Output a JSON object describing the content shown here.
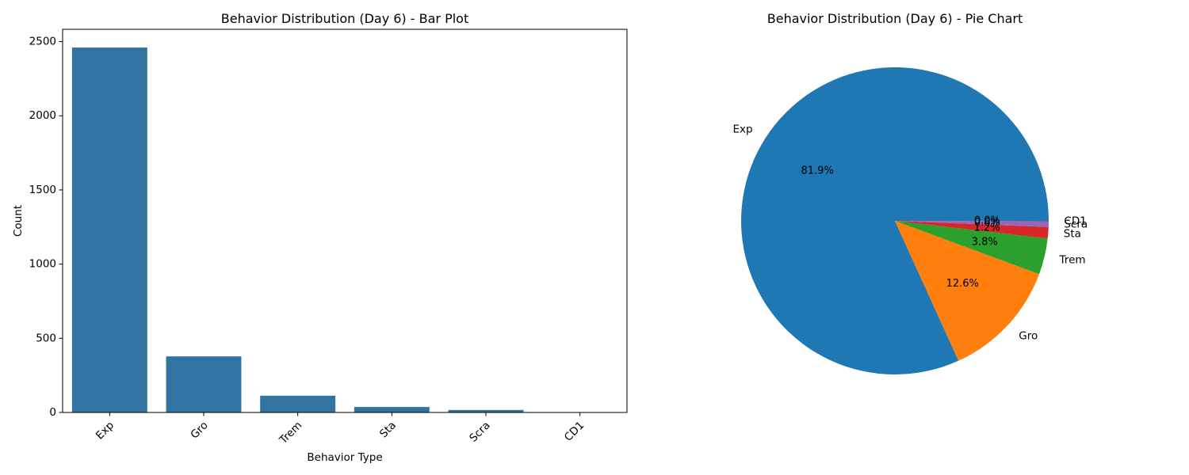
{
  "chart_data": [
    {
      "type": "bar",
      "title": "Behavior Distribution (Day 6) - Bar Plot",
      "xlabel": "Behavior Type",
      "ylabel": "Count",
      "categories": [
        "Exp",
        "Gro",
        "Trem",
        "Sta",
        "Scra",
        "CD1"
      ],
      "values": [
        2460,
        378,
        113,
        37,
        17,
        2
      ],
      "ylim": [
        0,
        2583
      ],
      "yticks": [
        0,
        500,
        1000,
        1500,
        2000,
        2500
      ],
      "x_tick_rotation": 45,
      "bar_color": "#3274a1",
      "grid": false
    },
    {
      "type": "pie",
      "title": "Behavior Distribution (Day 6) - Pie Chart",
      "labels": [
        "Exp",
        "Gro",
        "Trem",
        "Sta",
        "Scra",
        "CD1"
      ],
      "percent_labels": [
        "81.9%",
        "12.6%",
        "3.8%",
        "1.2%",
        "0.6%",
        "0.0%"
      ],
      "values": [
        81.9,
        12.6,
        3.8,
        1.2,
        0.6,
        0.04
      ],
      "colors": [
        "#1f77b4",
        "#ff7f0e",
        "#2ca02c",
        "#d62728",
        "#9467bd",
        "#8c564b"
      ],
      "start_angle_deg": 0,
      "direction": "counterclockwise"
    }
  ]
}
